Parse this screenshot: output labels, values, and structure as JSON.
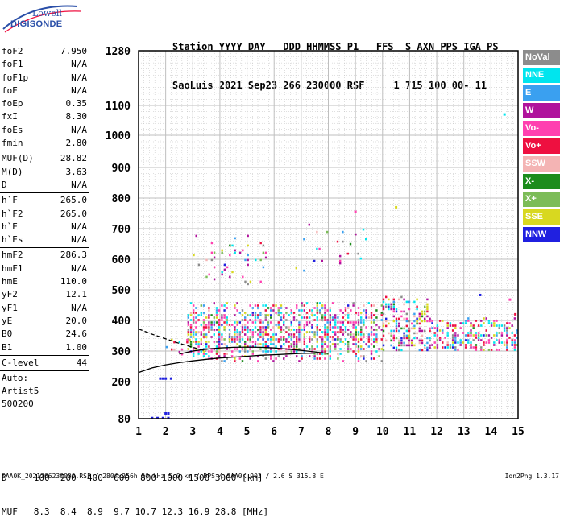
{
  "logo": {
    "line1": "Lowell",
    "line2": "DIGISONDE"
  },
  "header": {
    "line1": "Station YYYY DAY   DDD HHMMSS P1   FFS  S AXN PPS IGA PS",
    "line2": "SaoLuis 2021 Sep23 266 230000 RSF     1 715 100 00- 11"
  },
  "params": {
    "group1": [
      {
        "label": "foF2",
        "value": "7.950"
      },
      {
        "label": "foF1",
        "value": "N/A"
      },
      {
        "label": "foF1p",
        "value": "N/A"
      },
      {
        "label": "foE",
        "value": "N/A"
      },
      {
        "label": "foEp",
        "value": "0.35"
      },
      {
        "label": "fxI",
        "value": "8.30"
      },
      {
        "label": "foEs",
        "value": "N/A"
      },
      {
        "label": "fmin",
        "value": "2.80"
      }
    ],
    "group2": [
      {
        "label": "MUF(D)",
        "value": "28.82"
      },
      {
        "label": "M(D)",
        "value": "3.63"
      },
      {
        "label": "D",
        "value": "N/A"
      }
    ],
    "group3": [
      {
        "label": "h`F",
        "value": "265.0"
      },
      {
        "label": "h`F2",
        "value": "265.0"
      },
      {
        "label": "h`E",
        "value": "N/A"
      },
      {
        "label": "h`Es",
        "value": "N/A"
      }
    ],
    "group4": [
      {
        "label": "hmF2",
        "value": "286.3"
      },
      {
        "label": "hmF1",
        "value": "N/A"
      },
      {
        "label": "hmE",
        "value": "110.0"
      },
      {
        "label": "yF2",
        "value": "12.1"
      },
      {
        "label": "yF1",
        "value": "N/A"
      },
      {
        "label": "yE",
        "value": "20.0"
      },
      {
        "label": "B0",
        "value": "24.6"
      },
      {
        "label": "B1",
        "value": "1.00"
      }
    ],
    "group5": [
      {
        "label": "C-level",
        "value": "44"
      }
    ],
    "auto": [
      "Auto:",
      "Artist5",
      "500200"
    ]
  },
  "legend": [
    {
      "label": "NoVal",
      "bg": "#8c8c8c",
      "fg": "#ffffff"
    },
    {
      "label": "NNE",
      "bg": "#00e5ee",
      "fg": "#ffffff"
    },
    {
      "label": "E",
      "bg": "#3aa0f0",
      "fg": "#ffffff"
    },
    {
      "label": "W",
      "bg": "#b0129c",
      "fg": "#ffffff"
    },
    {
      "label": "Vo-",
      "bg": "#ff40b0",
      "fg": "#ffffff"
    },
    {
      "label": "Vo+",
      "bg": "#ee1040",
      "fg": "#ffffff"
    },
    {
      "label": "SSW",
      "bg": "#f4b4b4",
      "fg": "#ffffff"
    },
    {
      "label": "X-",
      "bg": "#1c8c1c",
      "fg": "#ffffff"
    },
    {
      "label": "X+",
      "bg": "#7cbc58",
      "fg": "#ffffff"
    },
    {
      "label": "SSE",
      "bg": "#d8d820",
      "fg": "#ffffff"
    },
    {
      "label": "NNW",
      "bg": "#2020e0",
      "fg": "#ffffff"
    }
  ],
  "dmuf": {
    "d_line": "D     100  200  400  600  800 1000 1500 3000 [km]",
    "muf_line": "MUF   8.3  8.4  8.9  9.7 10.7 12.3 16.9 28.8 [MHz]"
  },
  "footer": {
    "text": "SAA0K_2021266230000.RSF / 280fx256h 50 kHz 5.0 km / DPS-4 SAA0K 903 / 2.6 S 315.8 E",
    "version": "Ion2Png 1.3.17"
  },
  "chart_data": {
    "type": "scatter",
    "x_ticks": [
      1,
      2,
      3,
      4,
      5,
      6,
      7,
      8,
      9,
      10,
      11,
      12,
      13,
      14,
      15
    ],
    "y_ticks": [
      80,
      200,
      300,
      400,
      500,
      600,
      700,
      800,
      900,
      1000,
      1100,
      1280
    ],
    "xlim": [
      1,
      15
    ],
    "ylim": [
      80,
      1280
    ],
    "y_scale": "nonlinear",
    "grid": true,
    "legend_position": "right",
    "traces": [
      {
        "name": "dashed_profile",
        "style": "dashed",
        "x": [
          1.0,
          1.5,
          2.0,
          2.5,
          3.0,
          3.5
        ],
        "y": [
          372,
          355,
          340,
          325,
          312,
          300
        ]
      },
      {
        "name": "ordinary_fit",
        "style": "solid",
        "x": [
          1.0,
          1.5,
          2.0,
          2.5,
          3.0,
          3.5,
          4.0,
          4.5,
          5.0,
          5.5,
          6.0,
          6.5,
          7.0,
          7.5
        ],
        "y": [
          230,
          245,
          255,
          262,
          268,
          273,
          277,
          280,
          283,
          286,
          288,
          290,
          292,
          293
        ]
      },
      {
        "name": "f2_trace",
        "style": "solid",
        "x": [
          2.5,
          3.0,
          3.5,
          4.0,
          4.5,
          5.0,
          5.5,
          6.0,
          6.5,
          7.0,
          7.5,
          8.0
        ],
        "y": [
          290,
          300,
          306,
          310,
          312,
          313,
          312,
          310,
          306,
          302,
          297,
          292
        ]
      }
    ],
    "clusters": [
      {
        "x": [
          2.8,
          10.0
        ],
        "y": [
          270,
          460
        ],
        "density": 0.55
      },
      {
        "x": [
          10.0,
          11.8
        ],
        "y": [
          300,
          480
        ],
        "density": 0.5
      },
      {
        "x": [
          11.8,
          15.0
        ],
        "y": [
          300,
          410
        ],
        "density": 0.45
      },
      {
        "x": [
          2.0,
          3.0
        ],
        "y": [
          290,
          340
        ],
        "density": 0.35
      },
      {
        "x": [
          3.0,
          5.8
        ],
        "y": [
          520,
          680
        ],
        "density": 0.08
      },
      {
        "x": [
          6.5,
          9.5
        ],
        "y": [
          560,
          740
        ],
        "density": 0.06
      }
    ],
    "isolated": [
      {
        "x": 1.5,
        "y": 82
      },
      {
        "x": 1.7,
        "y": 82
      },
      {
        "x": 1.9,
        "y": 82
      },
      {
        "x": 2.1,
        "y": 82
      },
      {
        "x": 2.0,
        "y": 97
      },
      {
        "x": 2.1,
        "y": 97
      },
      {
        "x": 1.8,
        "y": 210
      },
      {
        "x": 1.9,
        "y": 210
      },
      {
        "x": 2.0,
        "y": 210
      },
      {
        "x": 2.2,
        "y": 210
      },
      {
        "x": 10.5,
        "y": 770
      },
      {
        "x": 9.0,
        "y": 755
      },
      {
        "x": 14.5,
        "y": 1070
      },
      {
        "x": 13.6,
        "y": 483
      },
      {
        "x": 14.7,
        "y": 468
      },
      {
        "x": 14.9,
        "y": 420
      }
    ]
  }
}
